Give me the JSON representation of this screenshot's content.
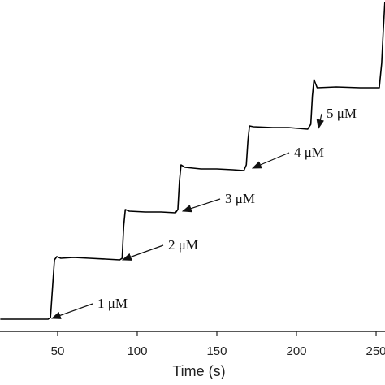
{
  "chart_data": {
    "type": "line",
    "x_label": "Time (s)",
    "xlim": [
      13.8,
      255.6
    ],
    "ylim": [
      0,
      408
    ],
    "xticks": [
      50,
      100,
      150,
      200,
      250
    ],
    "x": [
      14,
      30,
      44,
      45.5,
      47,
      48,
      49.5,
      52,
      60,
      70,
      80,
      89,
      90.5,
      91.5,
      92.5,
      95,
      105,
      115,
      124,
      125.5,
      126.5,
      127.5,
      130,
      140,
      150,
      160,
      167,
      168.5,
      169.5,
      170.5,
      173,
      185,
      195,
      207,
      209,
      210,
      211,
      213,
      225,
      240,
      252,
      253.5,
      254.5,
      255.5
    ],
    "series": [
      {
        "color": "#000000",
        "values": [
          15,
          15,
          15,
          17,
          60,
          88,
          92,
          90,
          91,
          90,
          89,
          88,
          90,
          130,
          150,
          148,
          147,
          147,
          146,
          150,
          185,
          205,
          202,
          200,
          200,
          199,
          198,
          205,
          235,
          253,
          252,
          251,
          251,
          249,
          255,
          290,
          310,
          300,
          301,
          300,
          300,
          330,
          370,
          405
        ]
      }
    ],
    "annotations": [
      "1 μM",
      "2 μM",
      "3 μM",
      "4 μM",
      "5 μM"
    ]
  }
}
